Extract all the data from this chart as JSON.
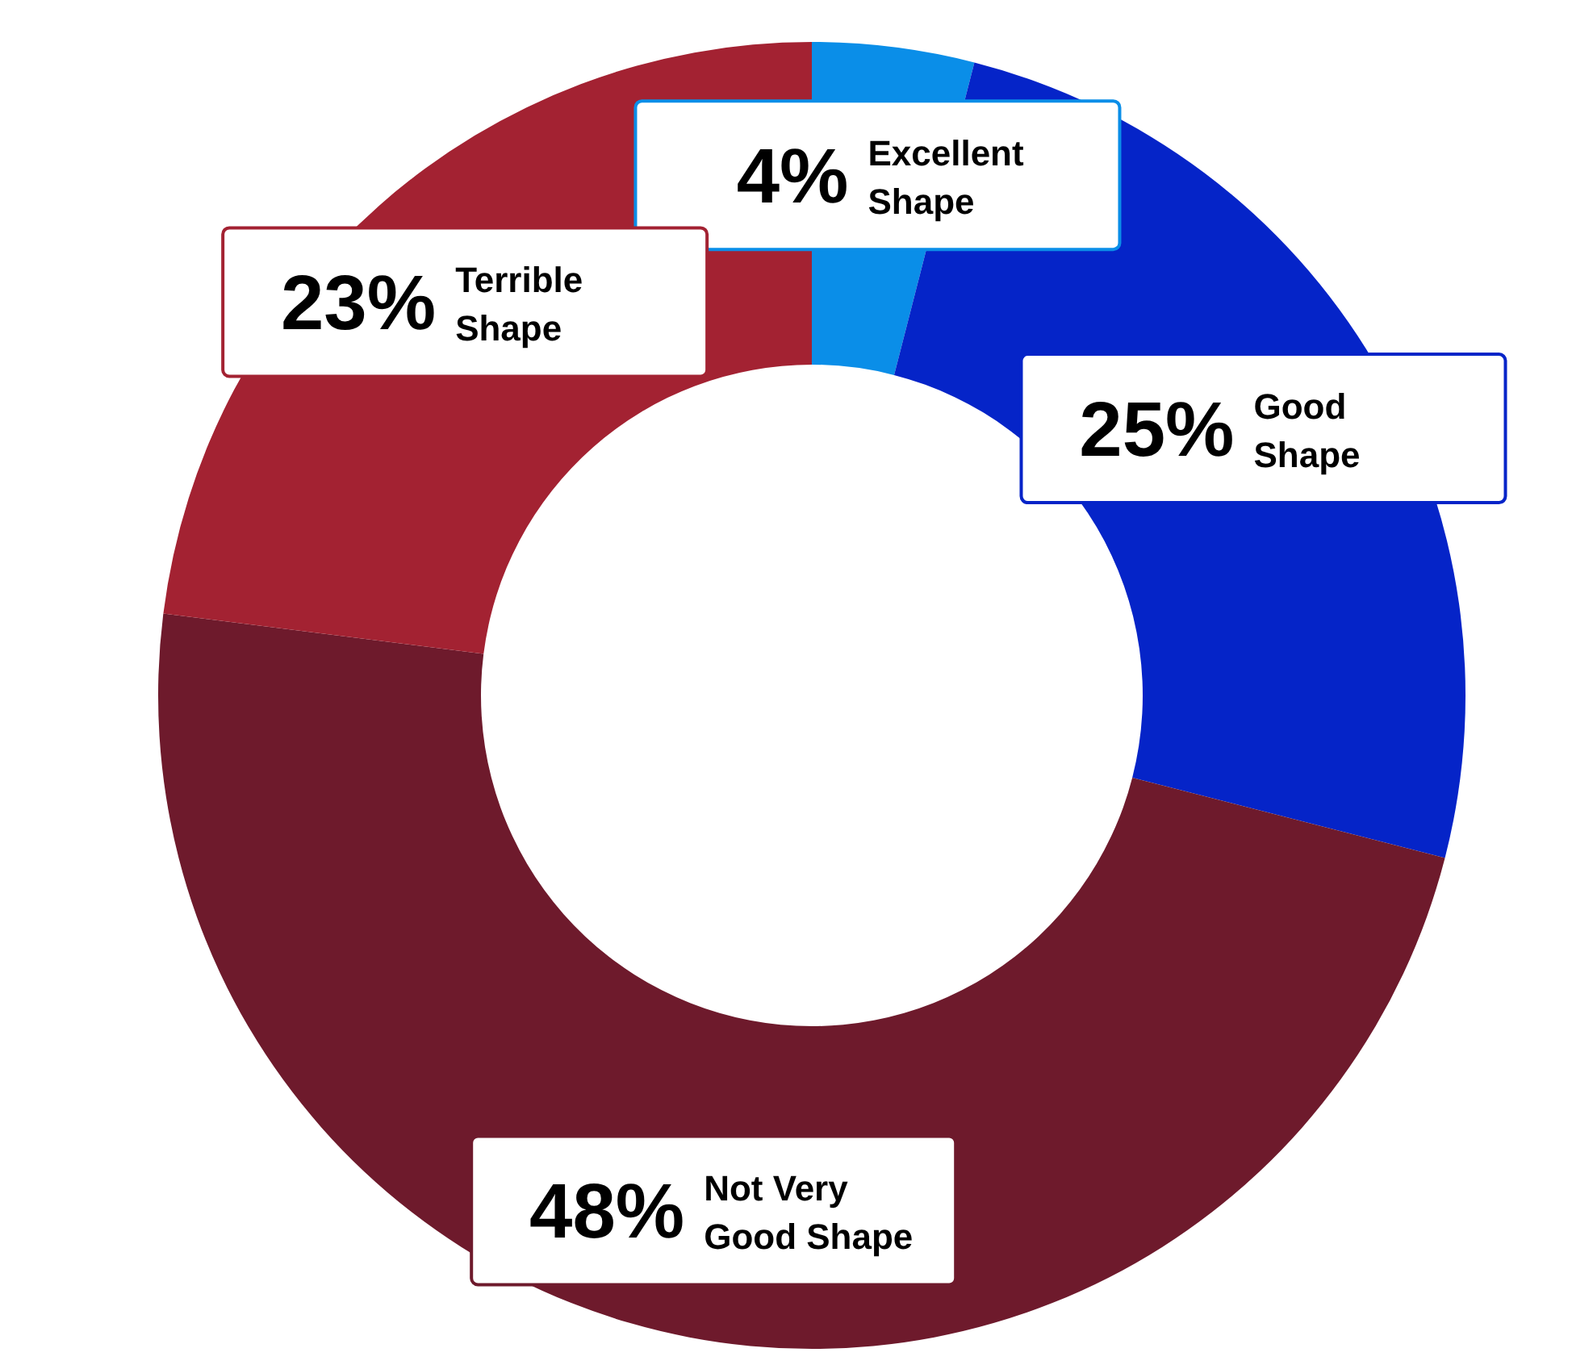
{
  "chart_data": {
    "type": "donut",
    "categories": [
      "Excellent Shape",
      "Good Shape",
      "Not Very Good Shape",
      "Terrible Shape"
    ],
    "values": [
      4,
      25,
      48,
      23
    ],
    "value_labels": [
      "4%",
      "25%",
      "48%",
      "23%"
    ],
    "colors": [
      "#0a8ee8",
      "#0524c8",
      "#6e1a2c",
      "#a32232"
    ]
  }
}
